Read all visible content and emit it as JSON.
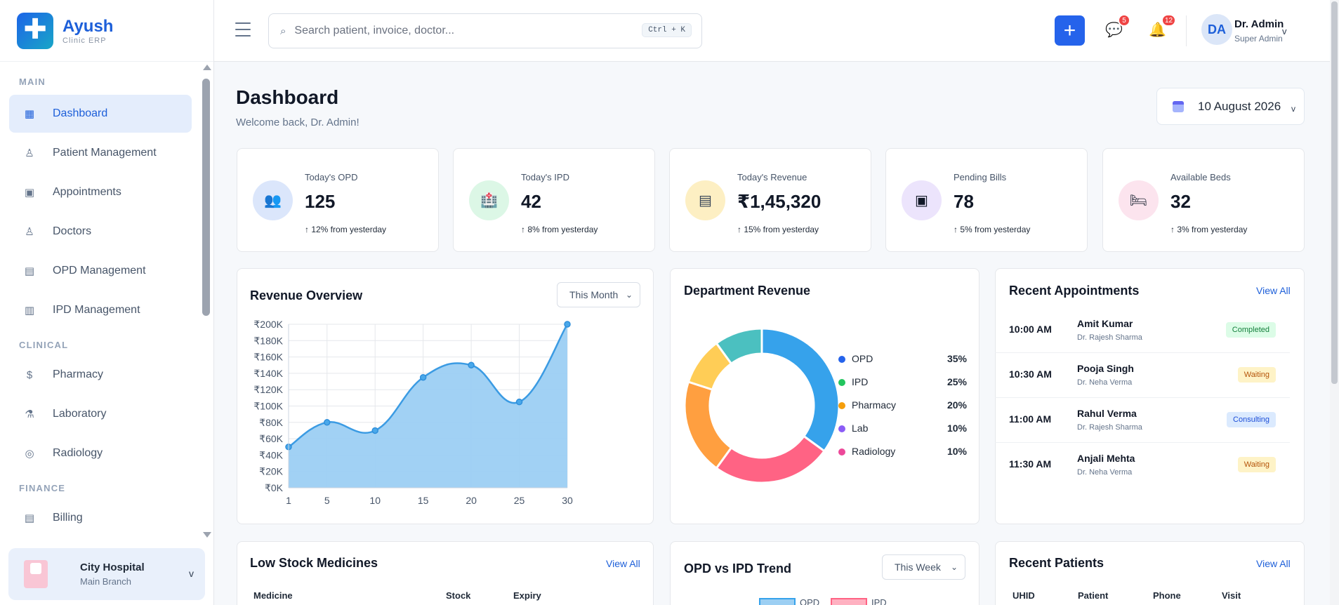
{
  "brand": {
    "name": "Ayush",
    "sub": "Clinic ERP",
    "logo_icon": "plus-icon"
  },
  "sidebar": {
    "sections": [
      {
        "title": "MAIN",
        "items": [
          {
            "label": "Dashboard",
            "icon": "grid-icon",
            "active": true
          },
          {
            "label": "Patient Management",
            "icon": "user-icon"
          },
          {
            "label": "Appointments",
            "icon": "calendar-icon"
          },
          {
            "label": "Doctors",
            "icon": "doctor-icon"
          },
          {
            "label": "OPD Management",
            "icon": "list-icon"
          },
          {
            "label": "IPD Management",
            "icon": "bed-icon"
          }
        ]
      },
      {
        "title": "CLINICAL",
        "items": [
          {
            "label": "Pharmacy",
            "icon": "pill-icon"
          },
          {
            "label": "Laboratory",
            "icon": "flask-icon"
          },
          {
            "label": "Radiology",
            "icon": "radiology-icon"
          }
        ]
      },
      {
        "title": "FINANCE",
        "items": [
          {
            "label": "Billing",
            "icon": "billing-icon"
          }
        ]
      }
    ],
    "branch": {
      "name": "City Hospital",
      "sub": "Main Branch"
    }
  },
  "header": {
    "search_placeholder": "Search patient, invoice, doctor...",
    "shortcut": "Ctrl + K",
    "messages_count": "5",
    "notifications_count": "12",
    "user": {
      "initials": "DA",
      "name": "Dr. Admin",
      "role": "Super Admin"
    }
  },
  "page": {
    "title": "Dashboard",
    "subtitle": "Welcome back, Dr. Admin!",
    "date": "10 August 2026"
  },
  "stats": [
    {
      "label": "Today's OPD",
      "value": "125",
      "trend": "↑ 12% from yesterday",
      "icon": "users-icon",
      "bg": "#dbe6fb",
      "color": "#5b3fb8"
    },
    {
      "label": "Today's IPD",
      "value": "42",
      "trend": "↑ 8% from yesterday",
      "icon": "hospital-icon",
      "bg": "#dcf7e6",
      "color": "#db2777"
    },
    {
      "label": "Today's Revenue",
      "value": "₹1,45,320",
      "trend": "↑ 15% from yesterday",
      "icon": "receipt-icon",
      "bg": "#fdefc3",
      "color": "#334155"
    },
    {
      "label": "Pending Bills",
      "value": "78",
      "trend": "↑ 5% from yesterday",
      "icon": "bill-icon",
      "bg": "#ece4fc",
      "color": "#111827"
    },
    {
      "label": "Available Beds",
      "value": "32",
      "trend": "↑ 3% from yesterday",
      "icon": "bed-icon",
      "bg": "#fce4ee",
      "color": "#1f2937"
    }
  ],
  "revenue": {
    "title": "Revenue Overview",
    "period": "This Month"
  },
  "department": {
    "title": "Department Revenue"
  },
  "recent_appointments": {
    "title": "Recent Appointments",
    "view_all": "View All",
    "items": [
      {
        "time": "10:00 AM",
        "patient": "Amit Kumar",
        "doctor": "Dr. Rajesh Sharma",
        "status": "Completed",
        "status_type": "completed"
      },
      {
        "time": "10:30 AM",
        "patient": "Pooja Singh",
        "doctor": "Dr. Neha Verma",
        "status": "Waiting",
        "status_type": "waiting"
      },
      {
        "time": "11:00 AM",
        "patient": "Rahul Verma",
        "doctor": "Dr. Rajesh Sharma",
        "status": "Consulting",
        "status_type": "consulting"
      },
      {
        "time": "11:30 AM",
        "patient": "Anjali Mehta",
        "doctor": "Dr. Neha Verma",
        "status": "Waiting",
        "status_type": "waiting"
      }
    ]
  },
  "low_stock": {
    "title": "Low Stock Medicines",
    "view_all": "View All",
    "columns": [
      "Medicine",
      "Stock",
      "Expiry"
    ]
  },
  "opd_ipd": {
    "title": "OPD vs IPD Trend",
    "period": "This Week",
    "legend": [
      "OPD",
      "IPD"
    ]
  },
  "recent_patients": {
    "title": "Recent Patients",
    "view_all": "View All",
    "columns": [
      "UHID",
      "Patient",
      "Phone",
      "Visit"
    ]
  },
  "chart_data": [
    {
      "type": "area",
      "title": "Revenue Overview",
      "x": [
        1,
        5,
        10,
        15,
        20,
        25,
        30
      ],
      "values": [
        50000,
        80000,
        70000,
        135000,
        150000,
        105000,
        200000
      ],
      "ylim": [
        0,
        200000
      ],
      "yticks": [
        "₹0K",
        "₹20K",
        "₹40K",
        "₹60K",
        "₹80K",
        "₹100K",
        "₹120K",
        "₹140K",
        "₹160K",
        "₹180K",
        "₹200K"
      ],
      "xticks": [
        "1",
        "5",
        "10",
        "15",
        "20",
        "25",
        "30"
      ],
      "grid": true,
      "color": "#3b9be3"
    },
    {
      "type": "pie",
      "title": "Department Revenue",
      "categories": [
        "OPD",
        "IPD",
        "Pharmacy",
        "Lab",
        "Radiology"
      ],
      "values": [
        35,
        25,
        20,
        10,
        10
      ],
      "labels": [
        "35%",
        "25%",
        "20%",
        "10%",
        "10%"
      ],
      "legend_colors": [
        "#2563eb",
        "#22c55e",
        "#f59e0b",
        "#8b5cf6",
        "#ec4899"
      ],
      "slice_colors": [
        "#36a2eb",
        "#ff6384",
        "#ff9f40",
        "#ffcd56",
        "#4bc0c0"
      ],
      "legend": "right"
    }
  ]
}
